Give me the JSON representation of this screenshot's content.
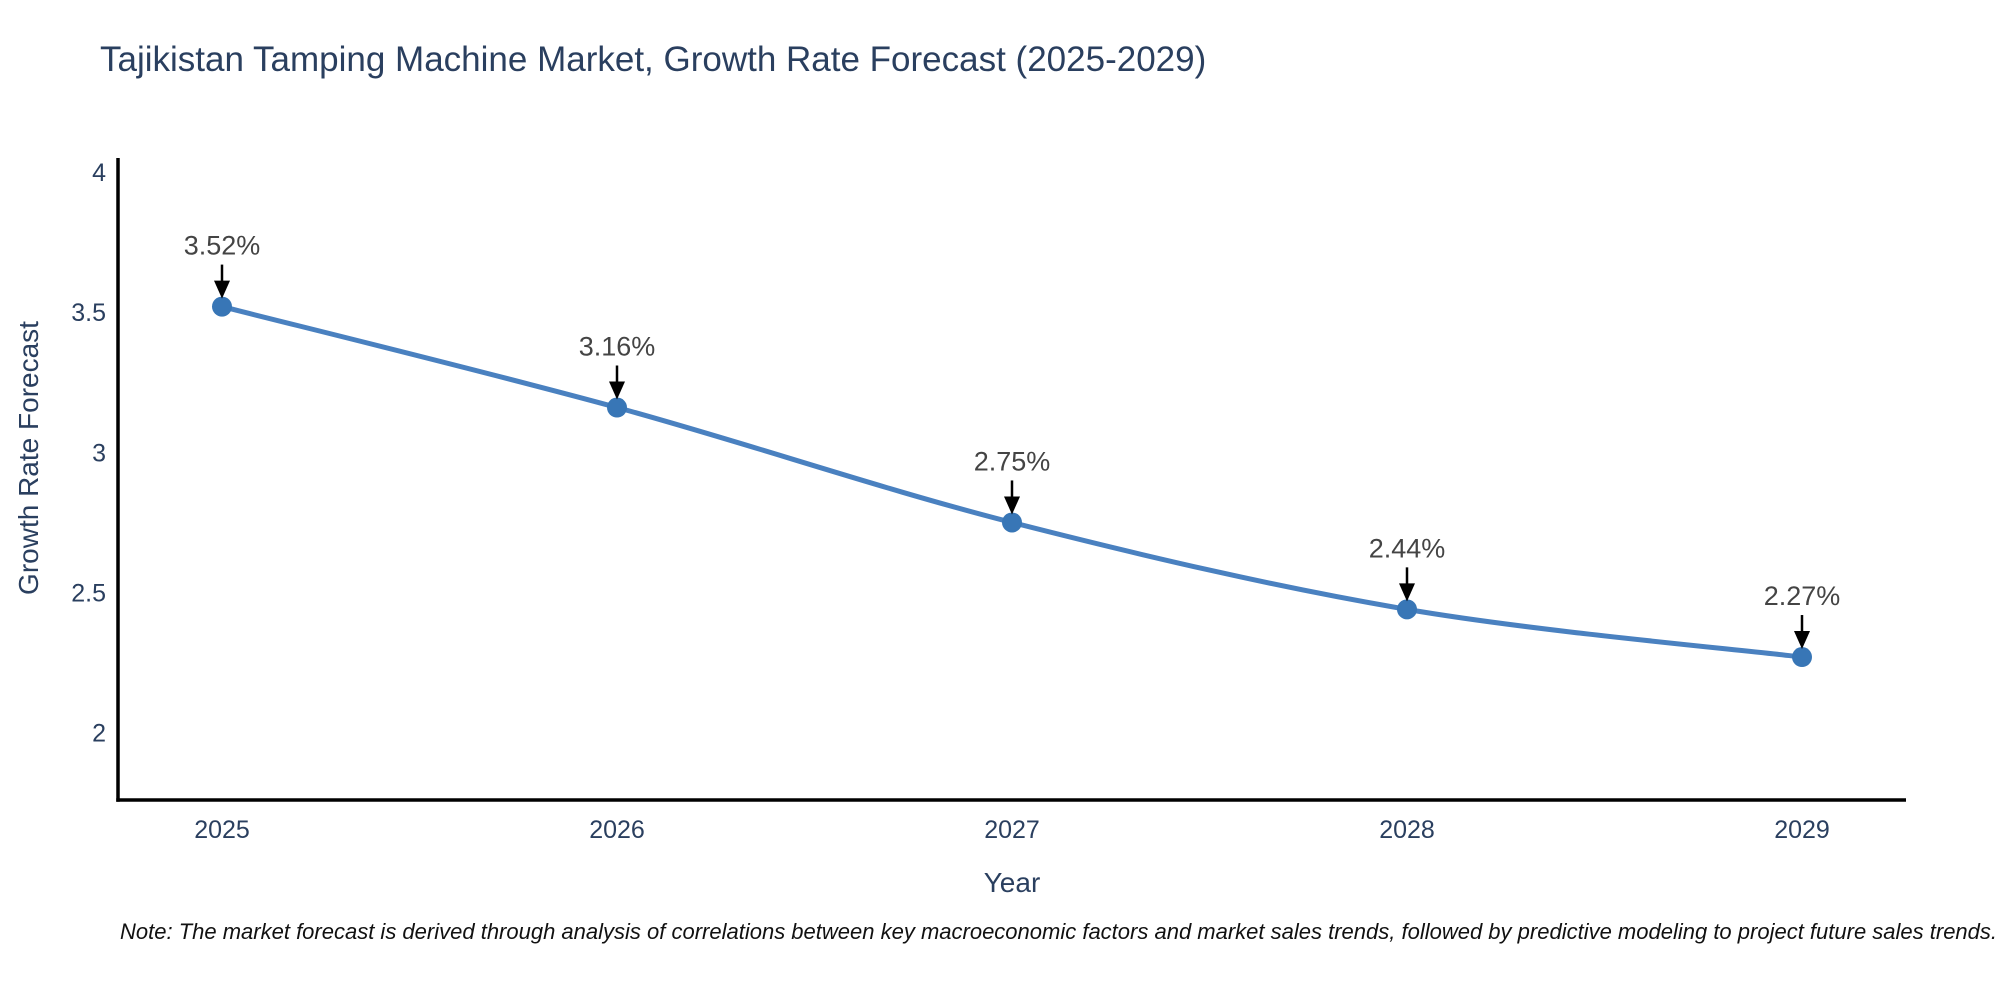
{
  "title": {
    "text": "Tajikistan Tamping Machine Market, Growth Rate Forecast (2025-2029)",
    "color": "#2a3f5f"
  },
  "chart_data": {
    "type": "line",
    "x": [
      2025,
      2026,
      2027,
      2028,
      2029
    ],
    "x_tick_labels": [
      "2025",
      "2026",
      "2027",
      "2028",
      "2029"
    ],
    "series": [
      {
        "name": "Growth Rate Forecast",
        "values": [
          3.52,
          3.16,
          2.75,
          2.44,
          2.27
        ]
      }
    ],
    "point_labels": [
      "3.52%",
      "3.16%",
      "2.75%",
      "2.44%",
      "2.27%"
    ],
    "xlabel": "Year",
    "ylabel": "Growth Rate Forecast",
    "y_ticks": [
      2,
      2.5,
      3,
      3.5,
      4
    ],
    "ylim": [
      1.76,
      4.05
    ],
    "grid": false,
    "legend_position": "none",
    "line_shape": "spline",
    "line_color": "#4a81c0",
    "marker_color": "#3876b6",
    "axis_line_color": "#000000",
    "tick_label_color": "#2a3f5f",
    "annotation_text_color": "#444444",
    "annotation_arrow_color": "#000000",
    "background_color": "#ffffff"
  },
  "note": {
    "text": "Note: The market forecast is derived through analysis of correlations between key macroeconomic factors and market sales trends, followed by predictive modeling to project future sales trends."
  }
}
